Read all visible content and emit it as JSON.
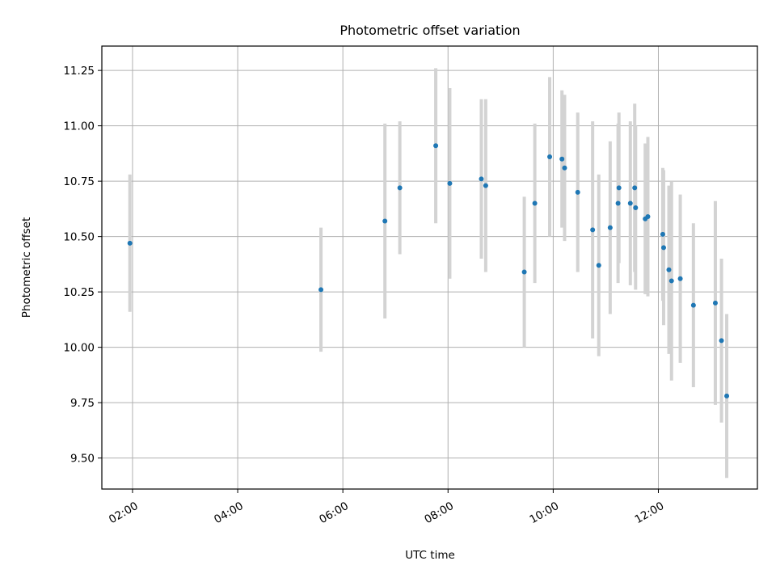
{
  "chart_data": {
    "type": "scatter",
    "title": "Photometric offset variation",
    "xlabel": "UTC time",
    "ylabel": "Photometric offset",
    "x_format": "HH:MM",
    "xlim": [
      "01:25",
      "13:53"
    ],
    "ylim": [
      9.36,
      11.36
    ],
    "x_ticks": [
      "02:00",
      "04:00",
      "06:00",
      "08:00",
      "10:00",
      "12:00"
    ],
    "y_ticks": [
      "9.50",
      "9.75",
      "10.00",
      "10.25",
      "10.50",
      "10.75",
      "11.00",
      "11.25"
    ],
    "grid": true,
    "legend": "none",
    "marker_color": "#1f77b4",
    "errorbar_color": "#d3d3d3",
    "points": [
      {
        "time": "01:57",
        "y": 10.47,
        "err": 0.31
      },
      {
        "time": "05:35",
        "y": 10.26,
        "err": 0.28
      },
      {
        "time": "06:48",
        "y": 10.57,
        "err": 0.44
      },
      {
        "time": "07:05",
        "y": 10.72,
        "err": 0.3
      },
      {
        "time": "07:46",
        "y": 10.91,
        "err": 0.35
      },
      {
        "time": "08:02",
        "y": 10.74,
        "err": 0.43
      },
      {
        "time": "08:38",
        "y": 10.76,
        "err": 0.36
      },
      {
        "time": "08:43",
        "y": 10.73,
        "err": 0.39
      },
      {
        "time": "09:27",
        "y": 10.34,
        "err": 0.34
      },
      {
        "time": "09:39",
        "y": 10.65,
        "err": 0.36
      },
      {
        "time": "09:56",
        "y": 10.86,
        "err": 0.36
      },
      {
        "time": "10:10",
        "y": 10.85,
        "err": 0.31
      },
      {
        "time": "10:13",
        "y": 10.81,
        "err": 0.33
      },
      {
        "time": "10:28",
        "y": 10.7,
        "err": 0.36
      },
      {
        "time": "10:45",
        "y": 10.53,
        "err": 0.49
      },
      {
        "time": "10:52",
        "y": 10.37,
        "err": 0.41
      },
      {
        "time": "11:05",
        "y": 10.54,
        "err": 0.39
      },
      {
        "time": "11:14",
        "y": 10.65,
        "err": 0.36
      },
      {
        "time": "11:15",
        "y": 10.72,
        "err": 0.34
      },
      {
        "time": "11:28",
        "y": 10.65,
        "err": 0.37
      },
      {
        "time": "11:33",
        "y": 10.72,
        "err": 0.38
      },
      {
        "time": "11:34",
        "y": 10.63,
        "err": 0.37
      },
      {
        "time": "11:45",
        "y": 10.58,
        "err": 0.34
      },
      {
        "time": "11:48",
        "y": 10.59,
        "err": 0.36
      },
      {
        "time": "12:05",
        "y": 10.51,
        "err": 0.3
      },
      {
        "time": "12:06",
        "y": 10.45,
        "err": 0.35
      },
      {
        "time": "12:12",
        "y": 10.35,
        "err": 0.38
      },
      {
        "time": "12:15",
        "y": 10.3,
        "err": 0.45
      },
      {
        "time": "12:25",
        "y": 10.31,
        "err": 0.38
      },
      {
        "time": "12:40",
        "y": 10.19,
        "err": 0.37
      },
      {
        "time": "13:05",
        "y": 10.2,
        "err": 0.46
      },
      {
        "time": "13:12",
        "y": 10.03,
        "err": 0.37
      },
      {
        "time": "13:18",
        "y": 9.78,
        "err": 0.37
      }
    ]
  }
}
